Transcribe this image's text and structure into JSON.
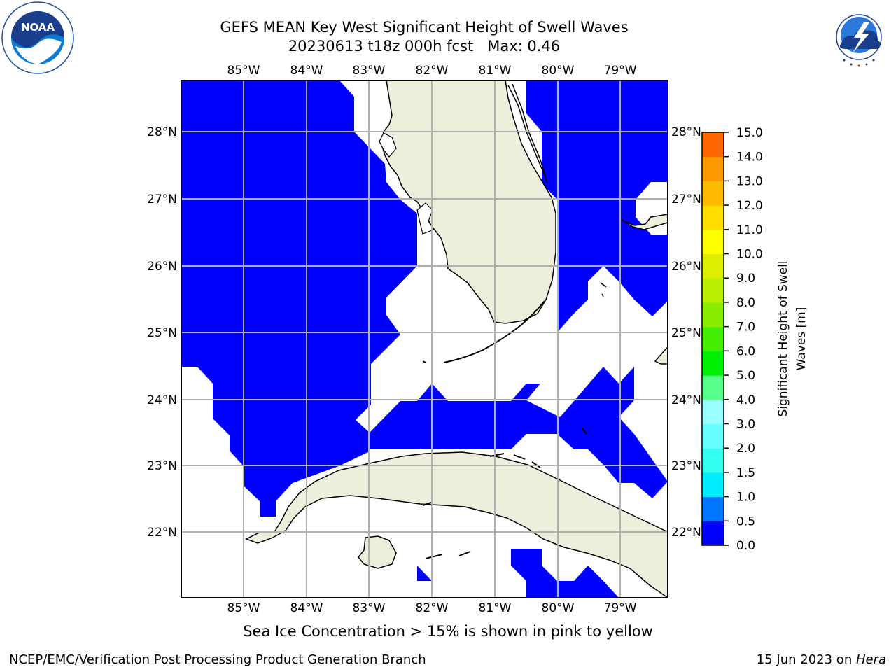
{
  "title": {
    "line1": "GEFS MEAN Key West Significant Height of Swell Waves",
    "line2": "20230613 t18z 000h fcst   Max: 0.46"
  },
  "map": {
    "lon_labels": [
      "85°W",
      "84°W",
      "83°W",
      "82°W",
      "81°W",
      "80°W",
      "79°W"
    ],
    "lat_labels": [
      "28°N",
      "27°N",
      "26°N",
      "25°N",
      "24°N",
      "23°N",
      "22°N"
    ],
    "lon_range": [
      -86.0,
      -78.25
    ],
    "lat_range": [
      21.0,
      28.8
    ],
    "ocean_color": "#0000ff",
    "land_color": "#eeeedd",
    "grid_color": "#b0b0b0",
    "grid": true
  },
  "colorbar": {
    "label_line1": "Significant Height of Swell",
    "label_line2": "Waves [m]",
    "ticks": [
      "0.0",
      "0.5",
      "1.0",
      "1.5",
      "2.0",
      "3.0",
      "4.0",
      "5.0",
      "6.0",
      "7.0",
      "8.0",
      "9.0",
      "10.0",
      "11.0",
      "12.0",
      "13.0",
      "14.0",
      "15.0"
    ],
    "colors": [
      "#0000ff",
      "#0077ff",
      "#00eeff",
      "#33ffee",
      "#66ffff",
      "#99ffff",
      "#55ff88",
      "#00ee00",
      "#44ee00",
      "#88ee00",
      "#bbee00",
      "#ddee00",
      "#ffff00",
      "#ffdd00",
      "#ffbb00",
      "#ff9900",
      "#ff6600",
      "#ff3300",
      "#ff0000"
    ]
  },
  "logos": {
    "noaa_text": "NOAA",
    "nws_ring_text": "NATIONAL WEATHER SERVICE"
  },
  "footer": {
    "sea_ice_note": "Sea Ice Concentration > 15% is shown in pink to yellow",
    "left": "NCEP/EMC/Verification Post Processing Product Generation Branch",
    "right_date": "15 Jun 2023 on ",
    "right_host": "Hera"
  }
}
